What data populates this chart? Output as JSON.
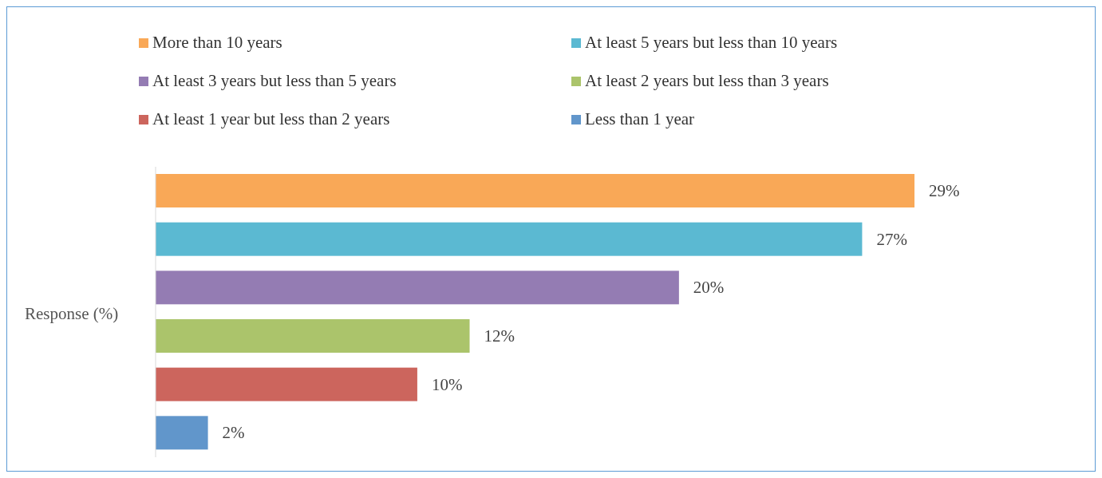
{
  "chart_data": {
    "type": "bar",
    "orientation": "horizontal",
    "stacked": true,
    "ylabel": "Response (%)",
    "categories": [
      null,
      null,
      null,
      null,
      null,
      null
    ],
    "legend": "top",
    "series": [
      {
        "name": "More than 10 years",
        "color": "#f9a857",
        "values": [
          29,
          null,
          null,
          null,
          null,
          null
        ],
        "value_labels": [
          "29%",
          null,
          null,
          null,
          null,
          null
        ]
      },
      {
        "name": "At least 5 years but less than 10 years",
        "color": "#5bb9d2",
        "values": [
          null,
          27,
          null,
          null,
          null,
          null
        ],
        "value_labels": [
          null,
          "27%",
          null,
          null,
          null,
          null
        ]
      },
      {
        "name": "At least 3 years but less than 5 years",
        "color": "#947cb3",
        "values": [
          null,
          null,
          20,
          null,
          null,
          null
        ],
        "value_labels": [
          null,
          null,
          "20%",
          null,
          null,
          null
        ]
      },
      {
        "name": "At least 2 years but less than 3 years",
        "color": "#abc46b",
        "values": [
          null,
          null,
          null,
          12,
          null,
          null
        ],
        "value_labels": [
          null,
          null,
          null,
          "12%",
          null,
          null
        ]
      },
      {
        "name": "At least 1 year but less than 2 years",
        "color": "#cc655d",
        "values": [
          null,
          null,
          null,
          null,
          10,
          null
        ],
        "value_labels": [
          null,
          null,
          null,
          null,
          "10%",
          null
        ]
      },
      {
        "name": "Less than 1 year",
        "color": "#6196cb",
        "values": [
          null,
          null,
          null,
          null,
          null,
          2
        ],
        "value_labels": [
          null,
          null,
          null,
          null,
          null,
          "2%"
        ]
      }
    ]
  }
}
